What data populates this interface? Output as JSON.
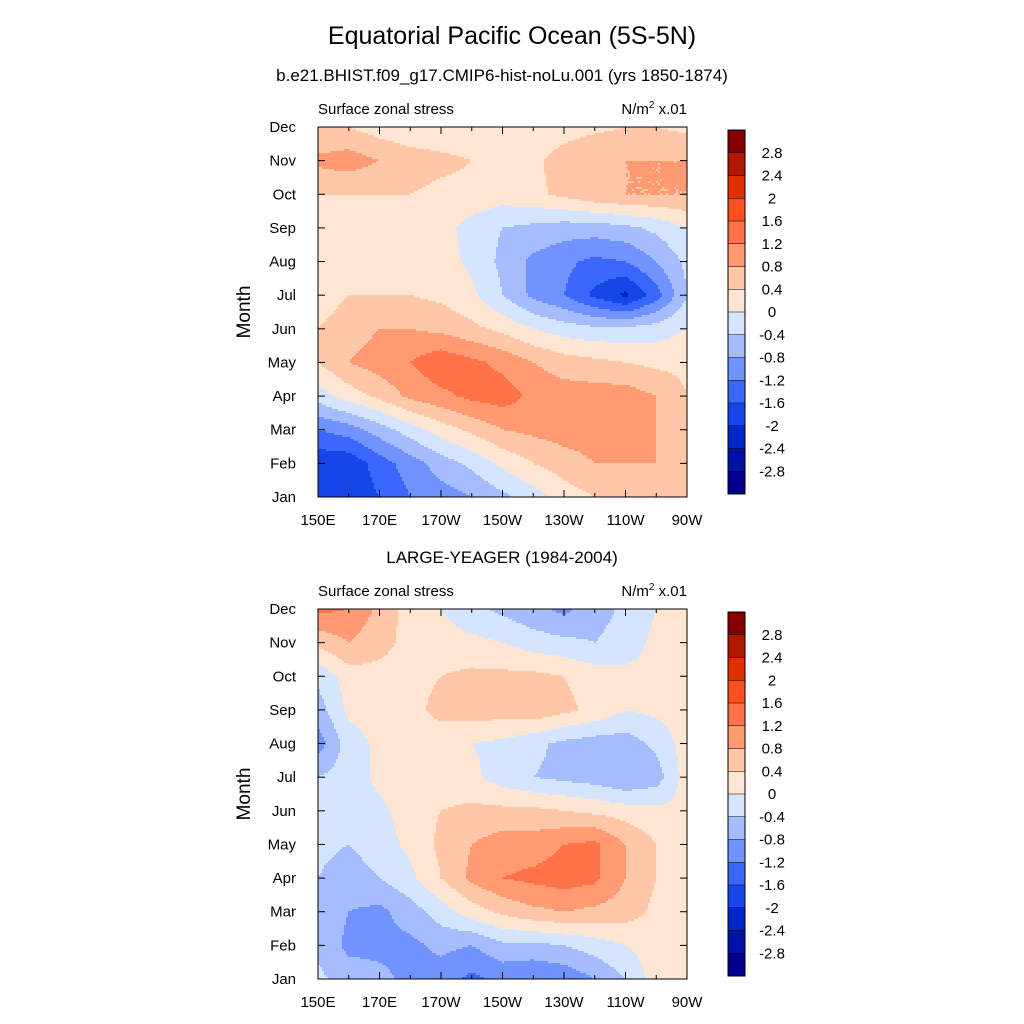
{
  "page": {
    "title": "Equatorial Pacific Ocean (5S-5N)",
    "panel_titles": [
      "b.e21.BHIST.f09_g17.CMIP6-hist-noLu.001 (yrs 1850-1874)",
      "LARGE-YEAGER (1984-2004)"
    ]
  },
  "chart_data": [
    {
      "type": "heatmap",
      "title": "b.e21.BHIST.f09_g17.CMIP6-hist-noLu.001 (yrs 1850-1874)",
      "left_label": "Surface zonal stress",
      "units_base": "N/m",
      "units_sup": "2",
      "units_scale": "x.01",
      "ylabel": "Month",
      "xlabel": "",
      "x_tick_values": [
        150,
        170,
        190,
        210,
        230,
        250,
        270
      ],
      "x_tick_labels": [
        "150E",
        "170E",
        "170W",
        "150W",
        "130W",
        "110W",
        "90W"
      ],
      "y_tick_labels": [
        "Jan",
        "Feb",
        "Mar",
        "Apr",
        "May",
        "Jun",
        "Jul",
        "Aug",
        "Sep",
        "Oct",
        "Nov",
        "Dec"
      ],
      "xlim": [
        150,
        270
      ],
      "x": [
        150,
        160,
        170,
        180,
        190,
        200,
        210,
        220,
        230,
        240,
        250,
        260,
        270
      ],
      "y": [
        1,
        2,
        3,
        4,
        5,
        6,
        7,
        8,
        9,
        10,
        11,
        12
      ],
      "z": [
        [
          -1.8,
          -1.9,
          -1.6,
          -1.2,
          -1.0,
          -0.8,
          -0.5,
          -0.2,
          0.2,
          0.4,
          0.4,
          0.4,
          0.4
        ],
        [
          -1.9,
          -1.9,
          -1.4,
          -1.0,
          -0.6,
          -0.3,
          0.1,
          0.4,
          0.6,
          0.8,
          0.8,
          0.8,
          0.4
        ],
        [
          -1.2,
          -1.0,
          -0.6,
          -0.2,
          0.2,
          0.5,
          0.8,
          0.9,
          1.0,
          1.0,
          1.0,
          0.8,
          0.4
        ],
        [
          -0.2,
          0.2,
          0.5,
          0.9,
          1.1,
          1.3,
          1.4,
          1.1,
          1.0,
          1.0,
          1.0,
          0.8,
          0.4
        ],
        [
          0.4,
          0.8,
          1.0,
          1.2,
          1.5,
          1.3,
          1.1,
          0.8,
          0.6,
          0.5,
          0.4,
          0.3,
          0.3
        ],
        [
          0.4,
          0.6,
          0.8,
          0.8,
          0.7,
          0.5,
          0.3,
          0.0,
          -0.2,
          -0.3,
          -0.3,
          -0.2,
          0.0
        ],
        [
          0.2,
          0.4,
          0.4,
          0.4,
          0.3,
          0.1,
          -0.4,
          -0.9,
          -1.2,
          -1.7,
          -2.1,
          -1.4,
          -0.4
        ],
        [
          0.2,
          0.2,
          0.3,
          0.3,
          0.2,
          -0.1,
          -0.5,
          -0.9,
          -1.1,
          -1.3,
          -1.2,
          -0.8,
          -0.3
        ],
        [
          0.0,
          0.2,
          0.3,
          0.3,
          0.2,
          -0.2,
          -0.4,
          -0.5,
          -0.6,
          -0.6,
          -0.5,
          -0.3,
          0.0
        ],
        [
          0.4,
          0.4,
          0.4,
          0.4,
          0.3,
          0.3,
          0.2,
          0.3,
          0.5,
          0.7,
          0.8,
          0.8,
          0.8
        ],
        [
          0.9,
          1.0,
          0.8,
          0.6,
          0.5,
          0.4,
          0.3,
          0.3,
          0.6,
          0.8,
          0.8,
          0.8,
          0.8
        ],
        [
          0.4,
          0.4,
          0.2,
          0.1,
          0.1,
          0.1,
          0.0,
          0.1,
          0.2,
          0.3,
          0.4,
          0.4,
          0.3
        ]
      ]
    },
    {
      "type": "heatmap",
      "title": "LARGE-YEAGER (1984-2004)",
      "left_label": "Surface zonal stress",
      "units_base": "N/m",
      "units_sup": "2",
      "units_scale": "x.01",
      "ylabel": "Month",
      "xlabel": "",
      "x_tick_values": [
        150,
        170,
        190,
        210,
        230,
        250,
        270
      ],
      "x_tick_labels": [
        "150E",
        "170E",
        "170W",
        "150W",
        "130W",
        "110W",
        "90W"
      ],
      "y_tick_labels": [
        "Jan",
        "Feb",
        "Mar",
        "Apr",
        "May",
        "Jun",
        "Jul",
        "Aug",
        "Sep",
        "Oct",
        "Nov",
        "Dec"
      ],
      "xlim": [
        150,
        270
      ],
      "x": [
        150,
        160,
        170,
        180,
        190,
        200,
        210,
        220,
        230,
        240,
        250,
        260,
        270
      ],
      "y": [
        1,
        2,
        3,
        4,
        5,
        6,
        7,
        8,
        9,
        10,
        11,
        12
      ],
      "z": [
        [
          -0.3,
          -0.6,
          -0.7,
          -0.9,
          -1.0,
          -1.3,
          -1.1,
          -1.2,
          -1.1,
          -0.8,
          -0.4,
          0.2,
          0.3
        ],
        [
          -0.5,
          -0.9,
          -0.9,
          -0.9,
          -0.7,
          -0.8,
          -0.5,
          -0.5,
          -0.4,
          -0.2,
          0.0,
          0.2,
          0.3
        ],
        [
          -0.5,
          -0.8,
          -0.9,
          -0.6,
          -0.2,
          0.2,
          0.5,
          0.7,
          0.8,
          0.7,
          0.6,
          0.3,
          0.3
        ],
        [
          -0.4,
          -0.6,
          -0.4,
          -0.1,
          0.4,
          0.9,
          1.2,
          1.3,
          1.4,
          1.3,
          0.8,
          0.4,
          0.3
        ],
        [
          -0.3,
          -0.4,
          -0.2,
          0.1,
          0.5,
          0.8,
          1.0,
          1.0,
          1.2,
          1.3,
          0.8,
          0.4,
          0.2
        ],
        [
          -0.3,
          -0.3,
          -0.1,
          0.2,
          0.4,
          0.5,
          0.5,
          0.5,
          0.4,
          0.3,
          0.2,
          0.1,
          0.1
        ],
        [
          -0.4,
          -0.2,
          0.1,
          0.3,
          0.2,
          0.1,
          -0.2,
          -0.4,
          -0.5,
          -0.6,
          -0.8,
          -0.6,
          0.2
        ],
        [
          -1.0,
          -0.2,
          0.1,
          0.3,
          0.2,
          0.0,
          -0.1,
          -0.3,
          -0.5,
          -0.6,
          -0.6,
          -0.3,
          0.2
        ],
        [
          -0.6,
          0.1,
          0.2,
          0.3,
          0.5,
          0.6,
          0.6,
          0.7,
          0.5,
          0.3,
          0.0,
          0.1,
          0.2
        ],
        [
          -0.3,
          0.2,
          0.3,
          0.3,
          0.4,
          0.5,
          0.5,
          0.5,
          0.4,
          0.2,
          0.1,
          0.1,
          0.2
        ],
        [
          0.5,
          0.8,
          0.5,
          0.3,
          0.2,
          0.1,
          0.0,
          -0.2,
          -0.3,
          -0.4,
          -0.2,
          0.1,
          0.3
        ],
        [
          1.3,
          1.2,
          0.7,
          0.2,
          0.0,
          -0.3,
          -0.5,
          -0.7,
          -0.9,
          -0.6,
          -0.3,
          0.0,
          0.3
        ]
      ]
    }
  ],
  "colorbar": {
    "levels": [
      -2.8,
      -2.4,
      -2.0,
      -1.6,
      -1.2,
      -0.8,
      -0.4,
      0,
      0.4,
      0.8,
      1.2,
      1.6,
      2.0,
      2.4,
      2.8
    ],
    "labels": [
      "-2.8",
      "-2.4",
      "-2",
      "-1.6",
      "-1.2",
      "-0.8",
      "-0.4",
      "0",
      "0.4",
      "0.8",
      "1.2",
      "1.6",
      "2",
      "2.4",
      "2.8"
    ],
    "colors": [
      "#00008e",
      "#0012a6",
      "#0026c8",
      "#1446e8",
      "#3a68ff",
      "#7193ff",
      "#a5bcff",
      "#d5e4ff",
      "#ffe6d2",
      "#ffc6a8",
      "#ff9a73",
      "#ff7348",
      "#ff4f1f",
      "#e13000",
      "#b31700",
      "#870000"
    ]
  }
}
